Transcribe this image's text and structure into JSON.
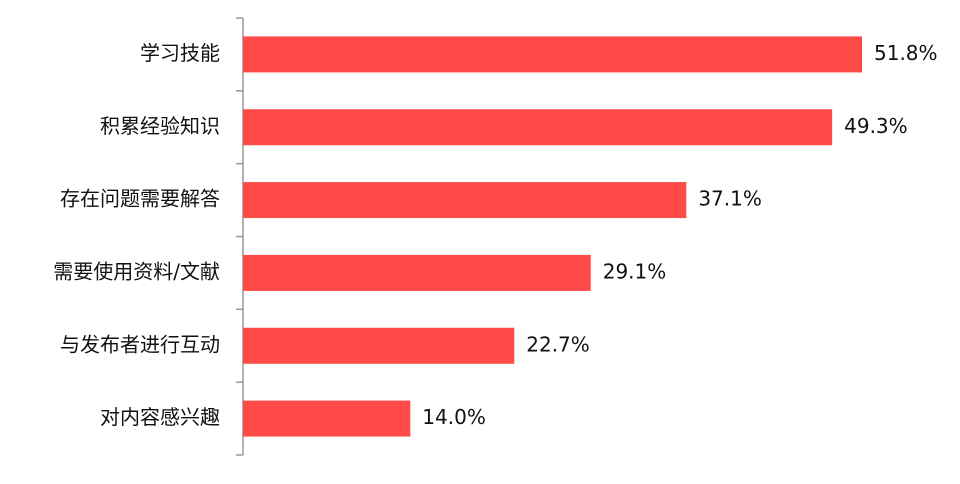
{
  "chart_data": {
    "type": "hbar",
    "categories": [
      "学习技能",
      "积累经验知识",
      "存在问题需要解答",
      "需要使用资料/文献",
      "与发布者进行互动",
      "对内容感兴趣"
    ],
    "values": [
      51.8,
      49.3,
      37.1,
      29.1,
      22.7,
      14.0
    ],
    "value_labels": [
      "51.8%",
      "49.3%",
      "37.1%",
      "29.1%",
      "22.7%",
      "14.0%"
    ],
    "color": "#ff4a47"
  }
}
